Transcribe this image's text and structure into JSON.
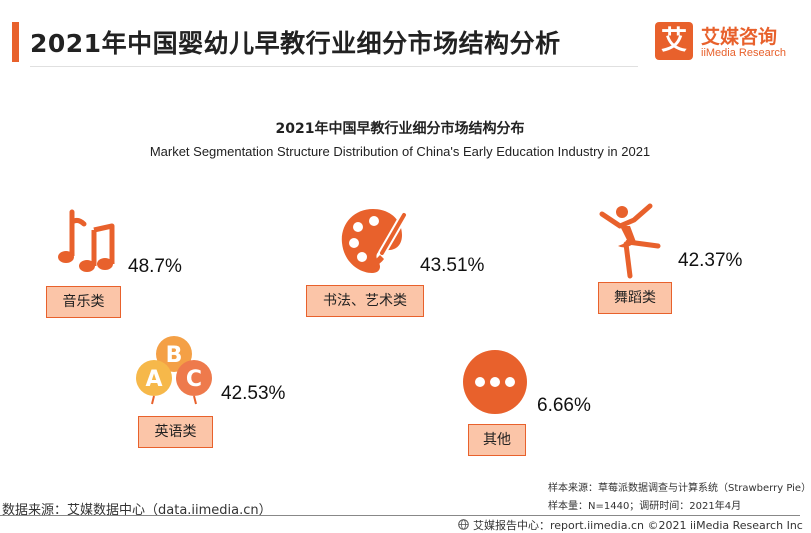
{
  "header": {
    "title": "2021年中国婴幼儿早教行业细分市场结构分析",
    "brand_mark": "艾",
    "brand_cn": "艾媒咨询",
    "brand_en": "iiMedia Research",
    "accent_color": "#e8612c"
  },
  "chart_data": {
    "type": "table",
    "title": "2021年中国早教行业细分市场结构分布",
    "subtitle": "Market Segmentation Structure Distribution of China's Early Education Industry in 2021",
    "segments": [
      {
        "label": "音乐类",
        "value": 48.7,
        "value_text": "48.7%",
        "icon": "music-note-icon"
      },
      {
        "label": "书法、艺术类",
        "value": 43.51,
        "value_text": "43.51%",
        "icon": "art-palette-icon"
      },
      {
        "label": "舞蹈类",
        "value": 42.37,
        "value_text": "42.37%",
        "icon": "dancer-icon"
      },
      {
        "label": "英语类",
        "value": 42.53,
        "value_text": "42.53%",
        "icon": "abc-balloons-icon"
      },
      {
        "label": "其他",
        "value": 6.66,
        "value_text": "6.66%",
        "icon": "more-dots-icon"
      }
    ],
    "colors": {
      "icon": "#e8612c",
      "label_fill": "#fbc5a8",
      "label_border": "#e8612c"
    }
  },
  "footer": {
    "data_source": "数据来源：艾媒数据中心（data.iimedia.cn）",
    "sample_source": "样本来源：草莓派数据调查与计算系统（Strawberry Pie）",
    "sample_size": "样本量：N=1440；调研时间：2021年4月",
    "report_center": "艾媒报告中心：report.iimedia.cn ©2021  iiMedia Research  Inc"
  }
}
